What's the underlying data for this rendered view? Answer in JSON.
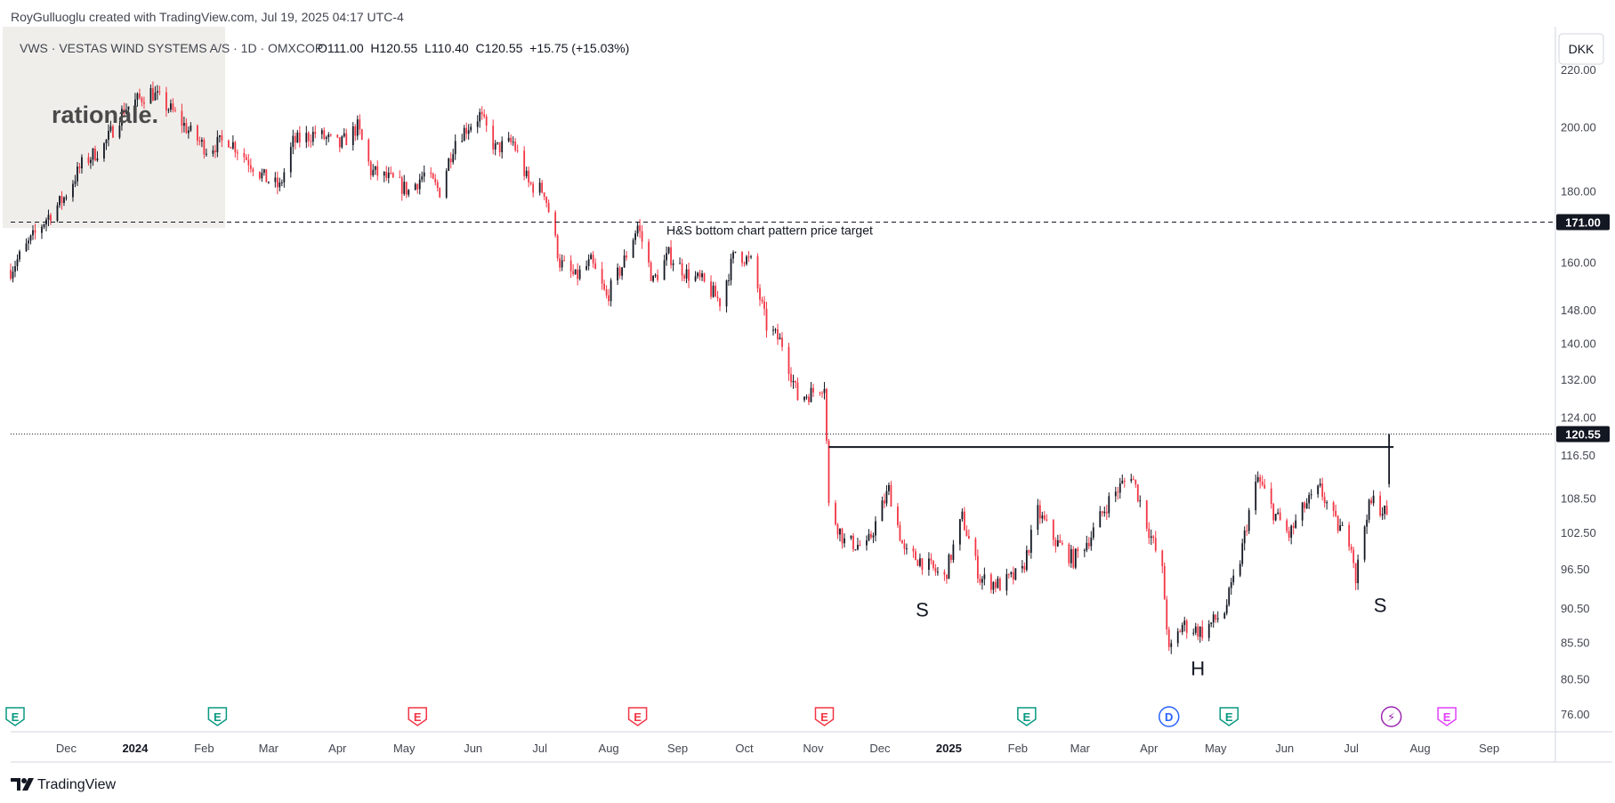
{
  "header": {
    "credit": "RoyGulluoglu created with TradingView.com, Jul 19, 2025 04:17 UTC-4",
    "symbol": "VWS · VESTAS WIND SYSTEMS A/S · 1D · OMXCOP",
    "ohlc": "O111.00  H120.55  L110.40  C120.55  +15.75 (+15.03%)"
  },
  "watermark": {
    "text": "rationale."
  },
  "footer": {
    "brand": "TradingView"
  },
  "currency": "DKK",
  "colors": {
    "up": "#131722",
    "down": "#f23645",
    "grid": "#d1d4dc",
    "text": "#131722",
    "axis_text": "#434651",
    "watermark_bg": "#efeeea",
    "earnings": "#089981",
    "earnings_neg": "#f23645",
    "dividend": "#2962ff",
    "split": "#9c27b0",
    "future_earnings": "#e040fb"
  },
  "chart_data": {
    "type": "candlestick",
    "scale": "log",
    "ylim": [
      74,
      236
    ],
    "y_ticks": [
      76.0,
      80.5,
      85.5,
      90.5,
      96.5,
      102.5,
      108.5,
      116.5,
      124.0,
      132.0,
      140.0,
      148.0,
      160.0,
      180.0,
      200.0,
      220.0
    ],
    "y_tick_labels": [
      "76.00",
      "80.50",
      "85.50",
      "90.50",
      "96.50",
      "102.50",
      "108.50",
      "116.50",
      "124.00",
      "132.00",
      "140.00",
      "148.00",
      "160.00",
      "180.00",
      "200.00",
      "220.00"
    ],
    "x_range": [
      "2023-11-06",
      "2025-09-30"
    ],
    "x_ticks": [
      {
        "label": "Dec",
        "date": "2023-12-01",
        "bold": false
      },
      {
        "label": "2024",
        "date": "2024-01-01",
        "bold": true
      },
      {
        "label": "Feb",
        "date": "2024-02-01",
        "bold": false
      },
      {
        "label": "Mar",
        "date": "2024-03-01",
        "bold": false
      },
      {
        "label": "Apr",
        "date": "2024-04-01",
        "bold": false
      },
      {
        "label": "May",
        "date": "2024-05-01",
        "bold": false
      },
      {
        "label": "Jun",
        "date": "2024-06-01",
        "bold": false
      },
      {
        "label": "Jul",
        "date": "2024-07-01",
        "bold": false
      },
      {
        "label": "Aug",
        "date": "2024-08-01",
        "bold": false
      },
      {
        "label": "Sep",
        "date": "2024-09-01",
        "bold": false
      },
      {
        "label": "Oct",
        "date": "2024-10-01",
        "bold": false
      },
      {
        "label": "Nov",
        "date": "2024-11-01",
        "bold": false
      },
      {
        "label": "Dec",
        "date": "2024-12-01",
        "bold": false
      },
      {
        "label": "2025",
        "date": "2025-01-01",
        "bold": true
      },
      {
        "label": "Feb",
        "date": "2025-02-01",
        "bold": false
      },
      {
        "label": "Mar",
        "date": "2025-03-01",
        "bold": false
      },
      {
        "label": "Apr",
        "date": "2025-04-01",
        "bold": false
      },
      {
        "label": "May",
        "date": "2025-05-01",
        "bold": false
      },
      {
        "label": "Jun",
        "date": "2025-06-01",
        "bold": false
      },
      {
        "label": "Jul",
        "date": "2025-07-01",
        "bold": false
      },
      {
        "label": "Aug",
        "date": "2025-08-01",
        "bold": false
      },
      {
        "label": "Sep",
        "date": "2025-09-01",
        "bold": false
      }
    ],
    "price_anchors": [
      [
        "2023-11-06",
        158
      ],
      [
        "2023-11-14",
        165
      ],
      [
        "2023-11-22",
        172
      ],
      [
        "2023-11-30",
        178
      ],
      [
        "2023-12-08",
        188
      ],
      [
        "2023-12-18",
        194
      ],
      [
        "2023-12-27",
        206
      ],
      [
        "2024-01-08",
        212
      ],
      [
        "2024-01-18",
        205
      ],
      [
        "2024-01-26",
        198
      ],
      [
        "2024-02-02",
        193
      ],
      [
        "2024-02-12",
        196
      ],
      [
        "2024-02-20",
        190
      ],
      [
        "2024-02-28",
        184
      ],
      [
        "2024-03-06",
        181
      ],
      [
        "2024-03-12",
        195
      ],
      [
        "2024-03-22",
        198
      ],
      [
        "2024-04-02",
        194
      ],
      [
        "2024-04-10",
        200
      ],
      [
        "2024-04-16",
        186
      ],
      [
        "2024-04-26",
        183
      ],
      [
        "2024-05-03",
        180
      ],
      [
        "2024-05-10",
        185
      ],
      [
        "2024-05-17",
        180
      ],
      [
        "2024-05-24",
        196
      ],
      [
        "2024-06-04",
        204
      ],
      [
        "2024-06-11",
        193
      ],
      [
        "2024-06-19",
        195
      ],
      [
        "2024-06-26",
        182
      ],
      [
        "2024-07-03",
        180
      ],
      [
        "2024-07-10",
        160
      ],
      [
        "2024-07-17",
        156
      ],
      [
        "2024-07-24",
        160
      ],
      [
        "2024-07-31",
        151
      ],
      [
        "2024-08-07",
        159
      ],
      [
        "2024-08-14",
        170
      ],
      [
        "2024-08-21",
        155
      ],
      [
        "2024-08-28",
        162
      ],
      [
        "2024-09-05",
        157
      ],
      [
        "2024-09-12",
        155
      ],
      [
        "2024-09-20",
        150
      ],
      [
        "2024-09-27",
        163
      ],
      [
        "2024-10-04",
        160
      ],
      [
        "2024-10-11",
        144
      ],
      [
        "2024-10-18",
        140
      ],
      [
        "2024-10-25",
        128
      ],
      [
        "2024-10-31",
        129
      ],
      [
        "2024-11-06",
        131
      ],
      [
        "2024-11-07",
        119
      ],
      [
        "2024-11-08",
        107
      ],
      [
        "2024-11-15",
        101
      ],
      [
        "2024-11-25",
        100
      ],
      [
        "2024-12-05",
        110
      ],
      [
        "2024-12-12",
        99
      ],
      [
        "2024-12-19",
        98
      ],
      [
        "2024-12-30",
        95
      ],
      [
        "2025-01-07",
        105
      ],
      [
        "2025-01-15",
        95
      ],
      [
        "2025-01-24",
        94
      ],
      [
        "2025-02-03",
        96
      ],
      [
        "2025-02-10",
        106
      ],
      [
        "2025-02-18",
        101
      ],
      [
        "2025-02-26",
        98
      ],
      [
        "2025-03-06",
        102
      ],
      [
        "2025-03-14",
        108
      ],
      [
        "2025-03-24",
        113
      ],
      [
        "2025-03-31",
        104
      ],
      [
        "2025-04-07",
        96
      ],
      [
        "2025-04-10",
        84
      ],
      [
        "2025-04-16",
        88
      ],
      [
        "2025-04-25",
        87
      ],
      [
        "2025-05-05",
        90
      ],
      [
        "2025-05-12",
        98
      ],
      [
        "2025-05-16",
        106
      ],
      [
        "2025-05-20",
        112
      ],
      [
        "2025-05-27",
        106
      ],
      [
        "2025-06-03",
        102
      ],
      [
        "2025-06-10",
        107
      ],
      [
        "2025-06-17",
        110
      ],
      [
        "2025-06-24",
        104
      ],
      [
        "2025-07-01",
        101
      ],
      [
        "2025-07-03",
        95
      ],
      [
        "2025-07-08",
        106
      ],
      [
        "2025-07-11",
        108
      ],
      [
        "2025-07-16",
        106
      ],
      [
        "2025-07-17",
        105
      ],
      [
        "2025-07-18",
        120.55
      ]
    ],
    "neckline": {
      "start": "2024-11-08",
      "end": "2025-07-20",
      "value": 118.0
    },
    "target_line": {
      "value": 171.0,
      "label": "171.00",
      "annotation": "H&S bottom chart pattern price target"
    },
    "last_price": {
      "value": 120.55,
      "label": "120.55"
    },
    "pattern_labels": [
      {
        "text": "S",
        "date": "2024-12-20",
        "value": 89.2
      },
      {
        "text": "H",
        "date": "2025-04-23",
        "value": 81.0
      },
      {
        "text": "S",
        "date": "2025-07-14",
        "value": 89.9
      }
    ],
    "events": [
      {
        "type": "E",
        "date": "2023-11-08",
        "color": "earnings"
      },
      {
        "type": "E",
        "date": "2024-02-07",
        "color": "earnings"
      },
      {
        "type": "E",
        "date": "2024-05-07",
        "color": "earnings_neg"
      },
      {
        "type": "E",
        "date": "2024-08-14",
        "color": "earnings_neg"
      },
      {
        "type": "E",
        "date": "2024-11-06",
        "color": "earnings_neg"
      },
      {
        "type": "E",
        "date": "2025-02-05",
        "color": "earnings"
      },
      {
        "type": "D",
        "date": "2025-04-10",
        "color": "dividend"
      },
      {
        "type": "E",
        "date": "2025-05-07",
        "color": "earnings"
      },
      {
        "type": "⚡",
        "date": "2025-07-19",
        "color": "split"
      },
      {
        "type": "E",
        "date": "2025-08-13",
        "color": "future_earnings"
      }
    ]
  }
}
